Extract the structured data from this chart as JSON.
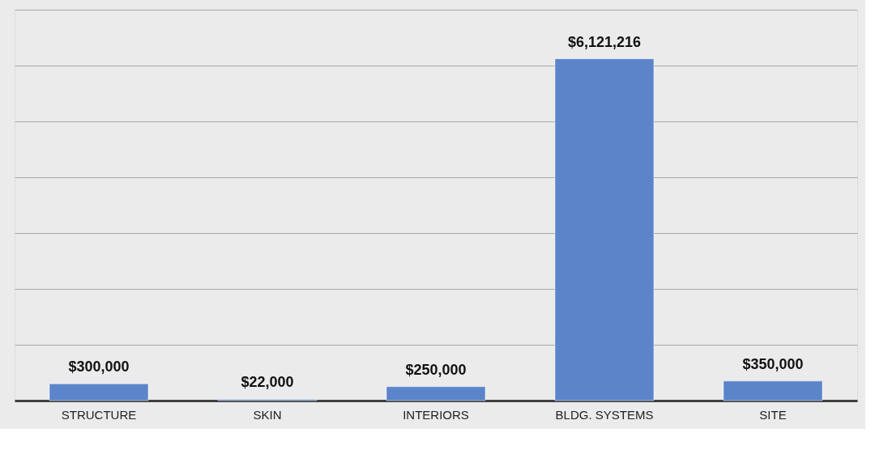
{
  "chart_data": {
    "type": "bar",
    "categories": [
      "STRUCTURE",
      "SKIN",
      "INTERIORS",
      "BLDG. SYSTEMS",
      "SITE"
    ],
    "values": [
      300000,
      22000,
      250000,
      6121216,
      350000
    ],
    "value_labels": [
      "$300,000",
      "$22,000",
      "$250,000",
      "$6,121,216",
      "$350,000"
    ],
    "color": "#5b84c9",
    "ylim": [
      0,
      7000000
    ],
    "yticks": [
      {
        "value": 0,
        "label": null
      },
      {
        "value": 1000000,
        "label": null
      },
      {
        "value": 2000000,
        "label": null
      },
      {
        "value": 3000000,
        "label": null
      },
      {
        "value": 4000000,
        "label": null
      },
      {
        "value": 5000000,
        "label": null
      },
      {
        "value": 6000000,
        "label": null
      },
      {
        "value": 7000000,
        "label": null
      }
    ],
    "grid": "y",
    "tick_labels": "x"
  }
}
